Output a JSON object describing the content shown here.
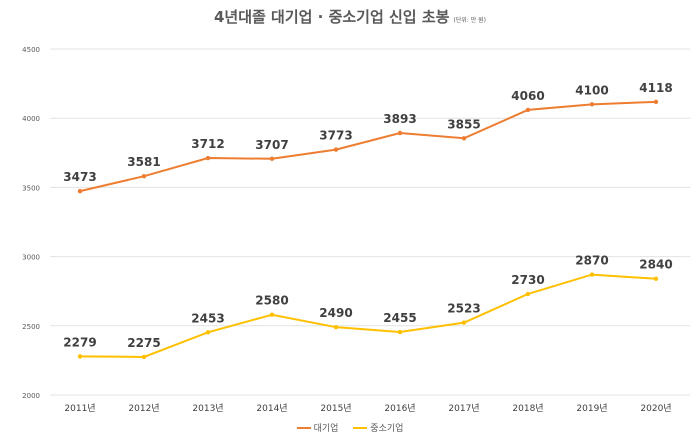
{
  "chart_data": {
    "type": "line",
    "title": "4년대졸 대기업 · 중소기업 신입 초봉",
    "subtitle": "(단위: 만 원)",
    "categories": [
      "2011년",
      "2012년",
      "2013년",
      "2014년",
      "2015년",
      "2016년",
      "2017년",
      "2018년",
      "2019년",
      "2020년"
    ],
    "series": [
      {
        "name": "대기업",
        "color": "#ED7D31",
        "values": [
          3473,
          3581,
          3712,
          3707,
          3773,
          3893,
          3855,
          4060,
          4100,
          4118
        ]
      },
      {
        "name": "중소기업",
        "color": "#FFC000",
        "values": [
          2279,
          2275,
          2453,
          2580,
          2490,
          2455,
          2523,
          2730,
          2870,
          2840
        ]
      }
    ],
    "ylim": [
      2000,
      4500
    ],
    "yticks": [
      2000,
      2500,
      3000,
      3500,
      4000,
      4500
    ],
    "grid": true,
    "legend": "bottom",
    "data_labels": true
  }
}
